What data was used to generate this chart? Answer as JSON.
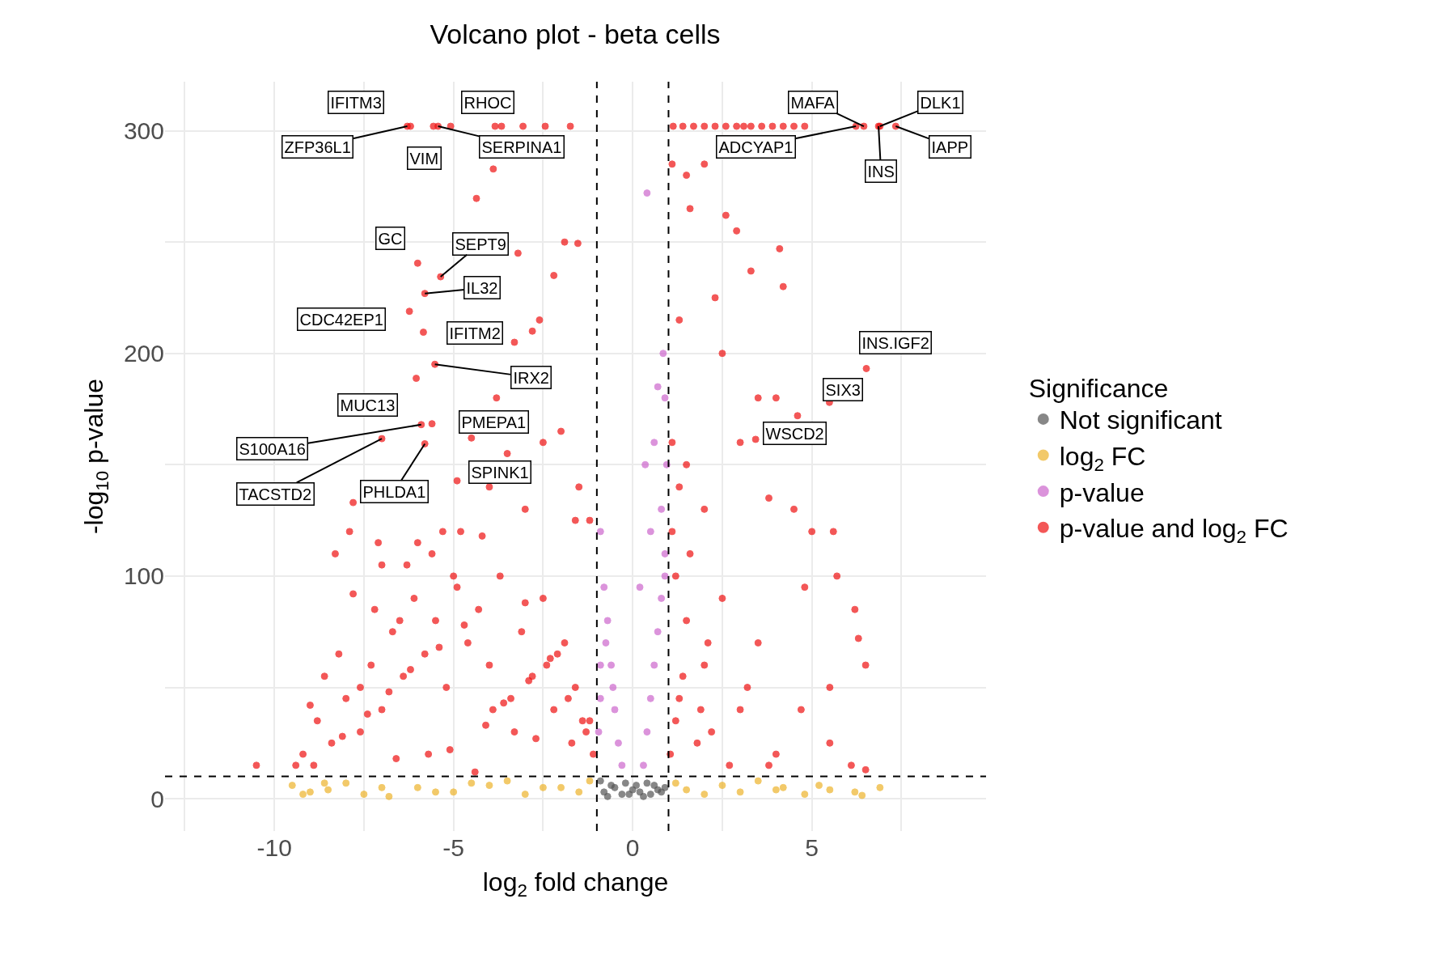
{
  "chart_data": {
    "type": "scatter",
    "title": "Volcano plot - beta cells",
    "xlabel": "log$_{2}$ fold change",
    "ylabel": "-log$_{10}$ p-value",
    "legend_title": "Significance",
    "xlim": [
      -13.05,
      9.86
    ],
    "ylim": [
      -14.5,
      322
    ],
    "xticks": [
      {
        "value": -12.5,
        "label": null
      },
      -10,
      {
        "value": -7.5,
        "label": null
      },
      -5,
      {
        "value": -2.5,
        "label": null
      },
      0,
      {
        "value": 2.5,
        "label": null
      },
      5,
      {
        "value": 7.5,
        "label": null
      }
    ],
    "yticks": [
      0,
      {
        "value": 50,
        "label": null
      },
      100,
      {
        "value": 150,
        "label": null
      },
      200,
      {
        "value": 250,
        "label": null
      },
      300
    ],
    "grid": true,
    "legend": "right",
    "marker": "circle",
    "ref_lines": [
      {
        "axis": "x",
        "value": -1,
        "color": "#000000",
        "line_style": "dashed"
      },
      {
        "axis": "x",
        "value": 1,
        "color": "#000000",
        "line_style": "dashed"
      },
      {
        "axis": "y",
        "value": 10,
        "color": "#000000",
        "line_style": "dashed"
      }
    ],
    "series": [
      {
        "name": "Not significant",
        "color": "#555555",
        "x": [
          -0.9,
          -0.8,
          -0.6,
          -0.5,
          -0.3,
          -0.2,
          0,
          0.2,
          0.3,
          0.5,
          0.6,
          0.8,
          0.9,
          -0.7,
          0.4,
          -0.1,
          0.1,
          0.7
        ],
        "values": [
          8,
          3,
          6,
          5,
          2,
          7,
          4,
          3,
          1,
          2,
          6,
          3,
          5,
          1,
          7,
          2,
          6,
          4
        ]
      },
      {
        "name": "log$_{2}$ FC",
        "color": "#edb32a",
        "x": [
          -9.5,
          -9.2,
          -9.0,
          -8.6,
          -8.5,
          -8.0,
          -7.5,
          -7.0,
          -6.8,
          -6.0,
          -5.5,
          -5.0,
          -4.5,
          -4.0,
          -3.5,
          -3.0,
          -2.5,
          -2.0,
          -1.5,
          -1.2,
          1.2,
          1.5,
          2.0,
          2.5,
          3.0,
          3.5,
          4.0,
          4.2,
          4.8,
          5.2,
          5.5,
          6.2,
          6.4,
          6.9
        ],
        "values": [
          6,
          2,
          3,
          7,
          4,
          7,
          2,
          5,
          1,
          5,
          3,
          3,
          7,
          6,
          8,
          2,
          5,
          5,
          3,
          8,
          7,
          4,
          2,
          6,
          3,
          8,
          4,
          5,
          2,
          6,
          4,
          3,
          1.5,
          5
        ]
      },
      {
        "name": "p-value",
        "color": "#cc66cc",
        "x": [
          -0.95,
          -0.9,
          -0.9,
          -0.8,
          -0.7,
          -0.6,
          -0.5,
          -0.4,
          -0.3,
          -0.9,
          0.3,
          0.4,
          0.5,
          0.6,
          0.7,
          0.8,
          0.9,
          0.95,
          0.85,
          0.9,
          0.6,
          0.4,
          0.35,
          0.2,
          0.8,
          0.7,
          0.9,
          0.5,
          -0.75,
          -0.55
        ],
        "values": [
          30,
          60,
          120,
          95,
          80,
          60,
          40,
          25,
          15,
          45,
          15,
          30,
          45,
          60,
          75,
          90,
          110,
          150,
          200,
          180,
          160,
          272,
          150,
          95,
          130,
          185,
          100,
          120,
          70,
          50
        ]
      },
      {
        "name": "p-value and log$_{2}$ FC",
        "color": "#ee1111",
        "x": [
          -10.5,
          -9.4,
          -9.0,
          -8.6,
          -8.2,
          -7.9,
          -7.8,
          -7.8,
          -7.2,
          -7.0,
          -6.5,
          -6.0,
          -5.6,
          -5.0,
          -4.8,
          -4.5,
          -4.0,
          -3.5,
          -3.0,
          -2.5,
          -2.0,
          -1.5,
          -1.2,
          -3.8,
          -3.3,
          -2.6,
          -2.2,
          -1.9,
          -3.2,
          -2.8,
          -3.89,
          -4.36,
          -1.53,
          -6.29,
          -6.2,
          -5.56,
          -5.43,
          -5.08,
          -3.84,
          -3.66,
          -3.06,
          -2.44,
          -1.74,
          -6.0,
          -5.36,
          -5.8,
          -6.23,
          -5.84,
          -5.52,
          -6.04,
          -5.6,
          -5.9,
          -7.0,
          -5.8,
          -4.9,
          -9.2,
          -8.8,
          -8.4,
          -8.0,
          -7.6,
          -7.3,
          -7.0,
          -6.7,
          -6.4,
          -6.1,
          -5.8,
          -5.5,
          -5.2,
          -4.9,
          -4.6,
          -4.3,
          -4.0,
          -3.7,
          -3.4,
          -3.1,
          -2.8,
          -2.5,
          -2.2,
          -1.9,
          -1.6,
          -1.3,
          -1.1,
          -8.9,
          -8.1,
          -7.4,
          -6.8,
          -6.2,
          -5.4,
          -4.7,
          -4.1,
          -3.6,
          -2.9,
          -2.3,
          -1.7,
          -1.2,
          -6.6,
          -5.1,
          -3.9,
          -2.7,
          -1.4,
          -4.4,
          -3.3,
          -2.1,
          -1.8,
          -5.7,
          -7.6,
          -8.3,
          -7.1,
          -6.3,
          -5.3,
          -4.2,
          -3.0,
          -1.6,
          -2.4,
          1.13,
          1.4,
          1.7,
          2.0,
          2.3,
          2.6,
          2.9,
          3.1,
          3.3,
          3.6,
          3.9,
          4.2,
          4.5,
          4.8,
          6.23,
          6.45,
          6.86,
          6.9,
          7.34,
          6.52,
          5.49,
          3.43,
          1.1,
          1.5,
          2.0,
          2.6,
          2.9,
          1.6,
          3.3,
          4.1,
          4.2,
          1.3,
          2.3,
          2.5,
          3.5,
          4.0,
          4.6,
          3.0,
          1.5,
          2.0,
          3.8,
          4.5,
          5.0,
          5.6,
          5.7,
          6.2,
          6.3,
          6.5,
          5.5,
          4.7,
          6.1,
          6.5,
          5.5,
          4.0,
          3.0,
          2.0,
          1.5,
          1.2,
          1.1,
          2.5,
          3.5,
          4.8,
          3.8,
          2.2,
          1.3,
          1.05,
          1.2,
          1.4,
          1.8,
          2.1,
          2.7,
          1.1,
          1.6,
          3.2,
          1.3,
          1.9
        ],
        "values": [
          15,
          15,
          42,
          55,
          65,
          120,
          92,
          133,
          85,
          105,
          80,
          115,
          110,
          100,
          120,
          162,
          140,
          155,
          130,
          160,
          165,
          140,
          125,
          180,
          205,
          215,
          235,
          250,
          245,
          210,
          282.8,
          269.6,
          249.4,
          302,
          302,
          302,
          302,
          302,
          302,
          302,
          302,
          302,
          302,
          240.5,
          234.4,
          226.9,
          218.9,
          209.5,
          195.1,
          188.8,
          168.4,
          168.0,
          161.7,
          159.4,
          142.8,
          20,
          35,
          25,
          45,
          30,
          60,
          40,
          75,
          55,
          90,
          65,
          80,
          50,
          95,
          70,
          85,
          60,
          100,
          45,
          75,
          55,
          90,
          40,
          70,
          50,
          30,
          20,
          15,
          28,
          38,
          48,
          58,
          68,
          78,
          33,
          43,
          53,
          63,
          25,
          35,
          18,
          22,
          40,
          27,
          35,
          12,
          30,
          65,
          45,
          20,
          50,
          110,
          115,
          105,
          120,
          118,
          88,
          125,
          60,
          302,
          302,
          302,
          302,
          302,
          302,
          302,
          302,
          302,
          302,
          302,
          302,
          302,
          302,
          302,
          302,
          302,
          302,
          302,
          193.2,
          178,
          161.4,
          285,
          280,
          285,
          262,
          255,
          265,
          237,
          247,
          230,
          215,
          225,
          200,
          180,
          180,
          172,
          160,
          150,
          130,
          135,
          130,
          120,
          120,
          100,
          85,
          72,
          60,
          50,
          40,
          15,
          13,
          25,
          20,
          40,
          60,
          80,
          100,
          120,
          90,
          70,
          95,
          15,
          30,
          45,
          20,
          35,
          55,
          25,
          70,
          15,
          160,
          110,
          50,
          140,
          40
        ]
      }
    ],
    "annotations": [
      {
        "text": "IFITM3",
        "x": -6.2,
        "y": 302
      },
      {
        "text": "ZFP36L1",
        "x": -6.29,
        "y": 302
      },
      {
        "text": "VIM",
        "x": -5.56,
        "y": 302
      },
      {
        "text": "SERPINA1",
        "x": -5.43,
        "y": 302
      },
      {
        "text": "RHOC",
        "x": -5.08,
        "y": 302
      },
      {
        "text": "GC",
        "x": -6.0,
        "y": 240.5
      },
      {
        "text": "SEPT9",
        "x": -5.36,
        "y": 234.4
      },
      {
        "text": "IL32",
        "x": -5.8,
        "y": 226.9
      },
      {
        "text": "CDC42EP1",
        "x": -6.23,
        "y": 218.9
      },
      {
        "text": "IFITM2",
        "x": -5.84,
        "y": 209.5
      },
      {
        "text": "IRX2",
        "x": -5.52,
        "y": 195.1
      },
      {
        "text": "MUC13",
        "x": -6.04,
        "y": 188.8
      },
      {
        "text": "PMEPA1",
        "x": -5.6,
        "y": 168.4
      },
      {
        "text": "S100A16",
        "x": -5.9,
        "y": 168.0
      },
      {
        "text": "TACSTD2",
        "x": -7.0,
        "y": 161.7
      },
      {
        "text": "PHLDA1",
        "x": -5.8,
        "y": 159.4
      },
      {
        "text": "SPINK1",
        "x": -4.9,
        "y": 142.8
      },
      {
        "text": "MAFA",
        "x": 6.45,
        "y": 302
      },
      {
        "text": "ADCYAP1",
        "x": 6.23,
        "y": 302
      },
      {
        "text": "INS",
        "x": 6.86,
        "y": 302
      },
      {
        "text": "DLK1",
        "x": 6.9,
        "y": 302
      },
      {
        "text": "IAPP",
        "x": 7.34,
        "y": 302
      },
      {
        "text": "INS.IGF2",
        "x": 6.52,
        "y": 193.2
      },
      {
        "text": "SIX3",
        "x": 5.49,
        "y": 178
      },
      {
        "text": "WSCD2",
        "x": 3.43,
        "y": 161.4
      }
    ]
  }
}
